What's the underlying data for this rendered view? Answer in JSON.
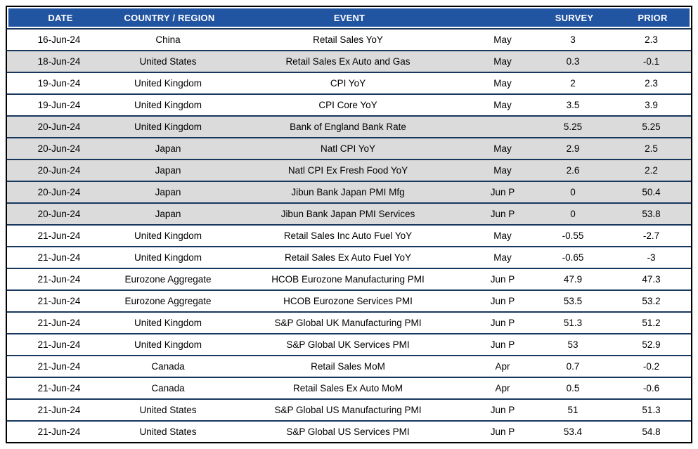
{
  "colors": {
    "header_bg": "#2154A1",
    "header_text": "#FFFFFF",
    "row_alt_bg": "#DBDBDB",
    "row_border": "#17375E",
    "outer_border": "#000000",
    "body_text": "#000000"
  },
  "table": {
    "headers": {
      "date": "DATE",
      "country": "COUNTRY / REGION",
      "event": "EVENT",
      "period": "",
      "survey": "SURVEY",
      "prior": "PRIOR"
    },
    "rows": [
      {
        "date": "16-Jun-24",
        "country": "China",
        "event": "Retail Sales YoY",
        "period": "May",
        "survey": "3",
        "prior": "2.3"
      },
      {
        "date": "18-Jun-24",
        "country": "United States",
        "event": "Retail Sales Ex Auto and Gas",
        "period": "May",
        "survey": "0.3",
        "prior": "-0.1"
      },
      {
        "date": "19-Jun-24",
        "country": "United Kingdom",
        "event": "CPI YoY",
        "period": "May",
        "survey": "2",
        "prior": "2.3"
      },
      {
        "date": "19-Jun-24",
        "country": "United Kingdom",
        "event": "CPI Core YoY",
        "period": "May",
        "survey": "3.5",
        "prior": "3.9"
      },
      {
        "date": "20-Jun-24",
        "country": "United Kingdom",
        "event": "Bank of England Bank Rate",
        "period": "",
        "survey": "5.25",
        "prior": "5.25"
      },
      {
        "date": "20-Jun-24",
        "country": "Japan",
        "event": "Natl CPI YoY",
        "period": "May",
        "survey": "2.9",
        "prior": "2.5"
      },
      {
        "date": "20-Jun-24",
        "country": "Japan",
        "event": "Natl CPI Ex Fresh Food YoY",
        "period": "May",
        "survey": "2.6",
        "prior": "2.2"
      },
      {
        "date": "20-Jun-24",
        "country": "Japan",
        "event": "Jibun Bank Japan PMI Mfg",
        "period": "Jun P",
        "survey": "0",
        "prior": "50.4"
      },
      {
        "date": "20-Jun-24",
        "country": "Japan",
        "event": "Jibun Bank Japan PMI Services",
        "period": "Jun P",
        "survey": "0",
        "prior": "53.8"
      },
      {
        "date": "21-Jun-24",
        "country": "United Kingdom",
        "event": "Retail Sales Inc Auto Fuel YoY",
        "period": "May",
        "survey": "-0.55",
        "prior": "-2.7"
      },
      {
        "date": "21-Jun-24",
        "country": "United Kingdom",
        "event": "Retail Sales Ex Auto Fuel YoY",
        "period": "May",
        "survey": "-0.65",
        "prior": "-3"
      },
      {
        "date": "21-Jun-24",
        "country": "Eurozone Aggregate",
        "event": "HCOB Eurozone Manufacturing PMI",
        "period": "Jun P",
        "survey": "47.9",
        "prior": "47.3"
      },
      {
        "date": "21-Jun-24",
        "country": "Eurozone Aggregate",
        "event": "HCOB Eurozone Services PMI",
        "period": "Jun P",
        "survey": "53.5",
        "prior": "53.2"
      },
      {
        "date": "21-Jun-24",
        "country": "United Kingdom",
        "event": "S&P Global UK Manufacturing PMI",
        "period": "Jun P",
        "survey": "51.3",
        "prior": "51.2"
      },
      {
        "date": "21-Jun-24",
        "country": "United Kingdom",
        "event": "S&P Global UK Services PMI",
        "period": "Jun P",
        "survey": "53",
        "prior": "52.9"
      },
      {
        "date": "21-Jun-24",
        "country": "Canada",
        "event": "Retail Sales MoM",
        "period": "Apr",
        "survey": "0.7",
        "prior": "-0.2"
      },
      {
        "date": "21-Jun-24",
        "country": "Canada",
        "event": "Retail Sales Ex Auto MoM",
        "period": "Apr",
        "survey": "0.5",
        "prior": "-0.6"
      },
      {
        "date": "21-Jun-24",
        "country": "United States",
        "event": "S&P Global US Manufacturing PMI",
        "period": "Jun P",
        "survey": "51",
        "prior": "51.3"
      },
      {
        "date": "21-Jun-24",
        "country": "United States",
        "event": "S&P Global US Services PMI",
        "period": "Jun P",
        "survey": "53.4",
        "prior": "54.8"
      }
    ]
  }
}
